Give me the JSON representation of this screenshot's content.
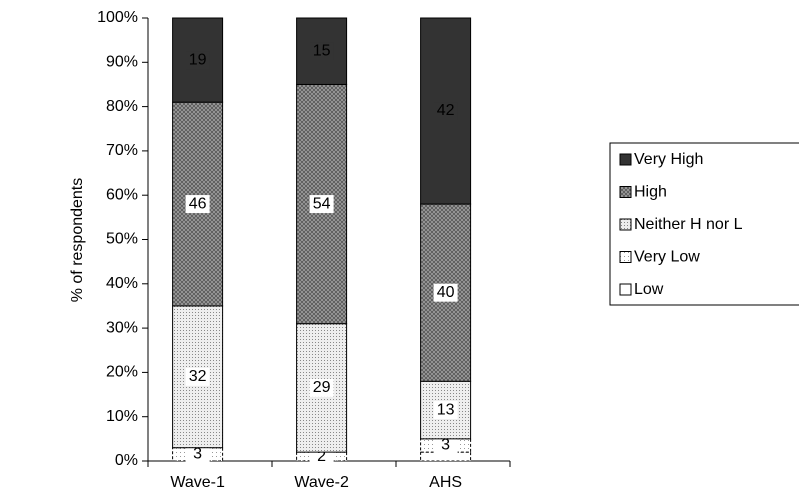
{
  "chart_data": {
    "type": "stacked-bar",
    "y_label": "% of respondents",
    "categories": [
      "Wave-1",
      "Wave-2",
      "AHS"
    ],
    "series": [
      {
        "name": "Low",
        "color": "#ffffff",
        "values": [
          0,
          0,
          2
        ],
        "value_labels": [
          null,
          null,
          null
        ]
      },
      {
        "name": "Very Low",
        "color": "#f4f4f4",
        "values": [
          3,
          2,
          3
        ]
      },
      {
        "name": "Neither H nor L",
        "color": "#d8d8d8",
        "values": [
          32,
          29,
          13
        ]
      },
      {
        "name": "High",
        "color": "#8c8c8c",
        "values": [
          46,
          54,
          40
        ]
      },
      {
        "name": "Very High",
        "color": "#333333",
        "values": [
          19,
          15,
          42
        ]
      }
    ],
    "ylim": [
      0,
      100
    ],
    "yticks": [
      {
        "value": 0,
        "label": "0%"
      },
      {
        "value": 10,
        "label": "10%"
      },
      {
        "value": 20,
        "label": "20%"
      },
      {
        "value": 30,
        "label": "30%"
      },
      {
        "value": 40,
        "label": "40%"
      },
      {
        "value": 50,
        "label": "50%"
      },
      {
        "value": 60,
        "label": "60%"
      },
      {
        "value": 70,
        "label": "70%"
      },
      {
        "value": 80,
        "label": "80%"
      },
      {
        "value": 90,
        "label": "90%"
      },
      {
        "value": 100,
        "label": "100%"
      }
    ],
    "legend": "right"
  }
}
